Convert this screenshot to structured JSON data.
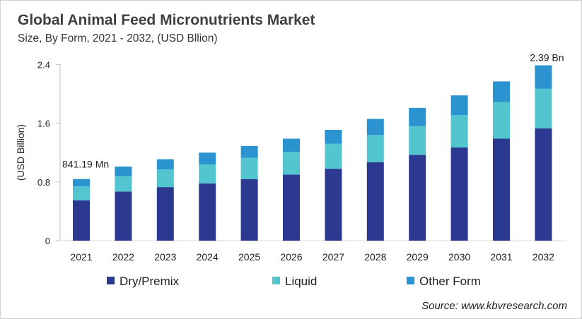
{
  "chart_data": {
    "type": "bar",
    "stacked": true,
    "title": "Global Animal Feed Micronutrients Market",
    "subtitle": "Size, By Form, 2021 - 2032, (USD Bllion)",
    "ylabel": "(USD Billion)",
    "xlabel": "",
    "ylim": [
      0,
      2.4
    ],
    "yticks": [
      "0",
      "0.8",
      "1.6",
      "2.4"
    ],
    "grid": false,
    "legend": "bottom",
    "categories": [
      "2021",
      "2022",
      "2023",
      "2024",
      "2025",
      "2026",
      "2027",
      "2028",
      "2029",
      "2030",
      "2031",
      "2032"
    ],
    "series": [
      {
        "name": "Dry/Premix",
        "color": "#2b3990",
        "values": [
          0.55,
          0.67,
          0.73,
          0.78,
          0.84,
          0.9,
          0.98,
          1.07,
          1.17,
          1.27,
          1.39,
          1.53
        ]
      },
      {
        "name": "Liquid",
        "color": "#52c5cf",
        "values": [
          0.19,
          0.21,
          0.24,
          0.26,
          0.29,
          0.31,
          0.34,
          0.37,
          0.39,
          0.44,
          0.5,
          0.54
        ]
      },
      {
        "name": "Other Form",
        "color": "#2a93d0",
        "values": [
          0.1,
          0.13,
          0.14,
          0.16,
          0.16,
          0.18,
          0.19,
          0.22,
          0.25,
          0.27,
          0.28,
          0.32
        ]
      }
    ],
    "annotations": [
      {
        "category": "2021",
        "text": "841.19 Mn"
      },
      {
        "category": "2032",
        "text": "2.39 Bn"
      }
    ],
    "source": "Source: www.kbvresearch.com"
  }
}
